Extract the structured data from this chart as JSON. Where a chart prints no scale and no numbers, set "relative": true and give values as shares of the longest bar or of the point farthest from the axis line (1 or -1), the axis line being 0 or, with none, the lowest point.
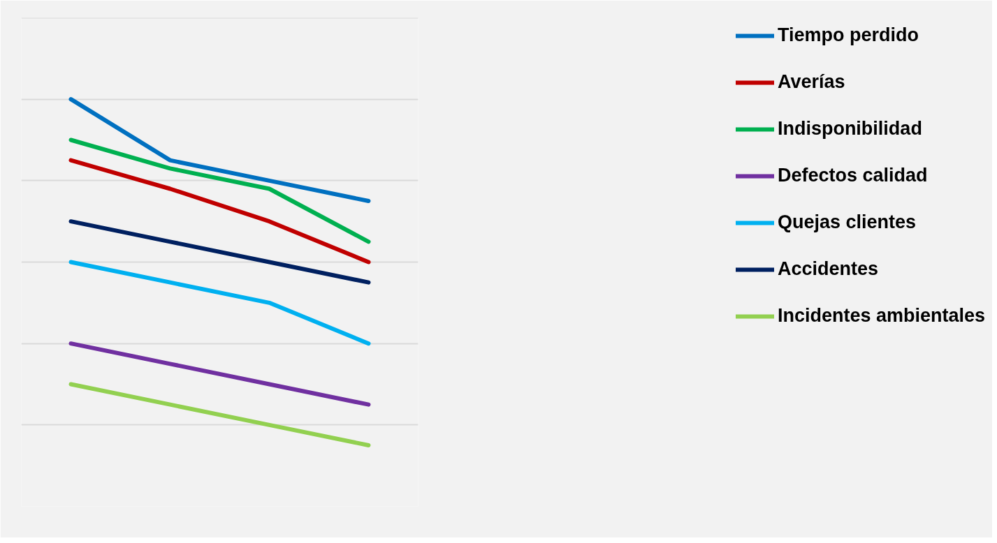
{
  "chart_data": {
    "type": "line",
    "relative": true,
    "categories": [
      null,
      null,
      null,
      null
    ],
    "grid": "y",
    "legend": "right",
    "marker": "none",
    "line_style": "solid",
    "series": [
      {
        "name": "Tiempo perdido",
        "color": "#0070c0",
        "values": [
          1,
          0.85,
          0.8,
          0.75
        ]
      },
      {
        "name": "Averías",
        "color": "#c00000",
        "values": [
          0.85,
          0.78,
          0.7,
          0.6
        ]
      },
      {
        "name": "Indisponibilidad",
        "color": "#00b050",
        "values": [
          0.9,
          0.83,
          0.78,
          0.65
        ]
      },
      {
        "name": "Defectos calidad",
        "color": "#7030a0",
        "values": [
          0.4,
          0.35,
          0.3,
          0.25
        ]
      },
      {
        "name": "Quejas clientes",
        "color": "#00b0f0",
        "values": [
          0.6,
          0.55,
          0.5,
          0.4
        ]
      },
      {
        "name": "Accidentes",
        "color": "#002060",
        "values": [
          0.7,
          0.65,
          0.6,
          0.55
        ]
      },
      {
        "name": "Incidentes ambientales",
        "color": "#92d050",
        "values": [
          0.3,
          0.25,
          0.2,
          0.15
        ]
      }
    ]
  }
}
